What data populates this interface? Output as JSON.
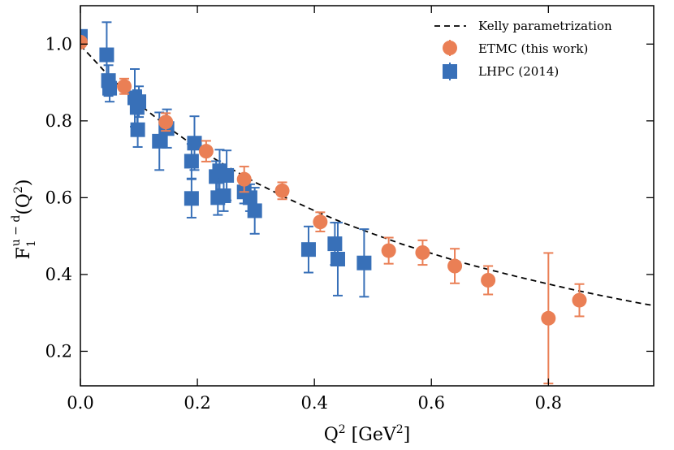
{
  "chart_data": {
    "type": "scatter",
    "xlabel_base": "Q",
    "xlabel_sup": "2",
    "xlabel_unit_open": " [GeV",
    "xlabel_unit_sup": "2",
    "xlabel_unit_close": "]",
    "ylabel_base": "F",
    "ylabel_sub": "1",
    "ylabel_sup": "u − d",
    "ylabel_arg_open": "(Q",
    "ylabel_arg_sup": "2",
    "ylabel_arg_close": ")",
    "xlim": [
      0.0,
      0.98
    ],
    "ylim": [
      0.11,
      1.1
    ],
    "xticks": [
      0.0,
      0.2,
      0.4,
      0.6,
      0.8
    ],
    "xtick_labels": [
      "0.0",
      "0.2",
      "0.4",
      "0.6",
      "0.8"
    ],
    "yticks": [
      0.2,
      0.4,
      0.6,
      0.8,
      1.0
    ],
    "ytick_labels": [
      "0.2",
      "0.4",
      "0.6",
      "0.8",
      "1.0"
    ],
    "grid": false,
    "legend_position": "top-right",
    "colors": {
      "etmc": "#EA7F55",
      "lhpc": "#3870B8",
      "kelly": "#000000"
    },
    "series": [
      {
        "name": "Kelly parametrization",
        "kind": "curve",
        "style": "dashed",
        "x": [
          0.0,
          0.05,
          0.1,
          0.15,
          0.2,
          0.25,
          0.3,
          0.35,
          0.4,
          0.45,
          0.5,
          0.55,
          0.6,
          0.65,
          0.7,
          0.75,
          0.8,
          0.85,
          0.9,
          0.95,
          0.98
        ],
        "y": [
          0.997,
          0.915,
          0.844,
          0.783,
          0.729,
          0.682,
          0.639,
          0.601,
          0.566,
          0.534,
          0.506,
          0.479,
          0.455,
          0.432,
          0.412,
          0.393,
          0.375,
          0.358,
          0.342,
          0.327,
          0.319
        ]
      },
      {
        "name": "ETMC (this work)",
        "kind": "points",
        "marker": "circle",
        "points": [
          {
            "x": 0.0,
            "y": 1.005,
            "err": 0.01
          },
          {
            "x": 0.075,
            "y": 0.89,
            "err": 0.02
          },
          {
            "x": 0.146,
            "y": 0.797,
            "err": 0.023
          },
          {
            "x": 0.215,
            "y": 0.721,
            "err": 0.027
          },
          {
            "x": 0.28,
            "y": 0.648,
            "err": 0.033
          },
          {
            "x": 0.345,
            "y": 0.618,
            "err": 0.022
          },
          {
            "x": 0.41,
            "y": 0.537,
            "err": 0.025
          },
          {
            "x": 0.527,
            "y": 0.462,
            "err": 0.034
          },
          {
            "x": 0.585,
            "y": 0.457,
            "err": 0.032
          },
          {
            "x": 0.64,
            "y": 0.422,
            "err": 0.045
          },
          {
            "x": 0.697,
            "y": 0.385,
            "err": 0.037
          },
          {
            "x": 0.8,
            "y": 0.286,
            "err": 0.17
          },
          {
            "x": 0.853,
            "y": 0.333,
            "err": 0.042
          }
        ]
      },
      {
        "name": "LHPC (2014)",
        "kind": "points",
        "marker": "square",
        "points": [
          {
            "x": 0.0,
            "y": 1.02,
            "err": 0.01
          },
          {
            "x": 0.045,
            "y": 0.972,
            "err": 0.085
          },
          {
            "x": 0.048,
            "y": 0.905,
            "err": 0.04
          },
          {
            "x": 0.05,
            "y": 0.885,
            "err": 0.035
          },
          {
            "x": 0.093,
            "y": 0.86,
            "err": 0.075
          },
          {
            "x": 0.097,
            "y": 0.835,
            "err": 0.045
          },
          {
            "x": 0.1,
            "y": 0.85,
            "err": 0.04
          },
          {
            "x": 0.098,
            "y": 0.777,
            "err": 0.045
          },
          {
            "x": 0.135,
            "y": 0.747,
            "err": 0.075
          },
          {
            "x": 0.148,
            "y": 0.78,
            "err": 0.05
          },
          {
            "x": 0.19,
            "y": 0.695,
            "err": 0.045
          },
          {
            "x": 0.195,
            "y": 0.742,
            "err": 0.07
          },
          {
            "x": 0.19,
            "y": 0.598,
            "err": 0.05
          },
          {
            "x": 0.232,
            "y": 0.655,
            "err": 0.04
          },
          {
            "x": 0.238,
            "y": 0.67,
            "err": 0.055
          },
          {
            "x": 0.25,
            "y": 0.658,
            "err": 0.065
          },
          {
            "x": 0.235,
            "y": 0.6,
            "err": 0.045
          },
          {
            "x": 0.245,
            "y": 0.605,
            "err": 0.04
          },
          {
            "x": 0.28,
            "y": 0.615,
            "err": 0.03
          },
          {
            "x": 0.29,
            "y": 0.6,
            "err": 0.035
          },
          {
            "x": 0.298,
            "y": 0.566,
            "err": 0.06
          },
          {
            "x": 0.39,
            "y": 0.465,
            "err": 0.06
          },
          {
            "x": 0.435,
            "y": 0.48,
            "err": 0.055
          },
          {
            "x": 0.44,
            "y": 0.44,
            "err": 0.095
          },
          {
            "x": 0.485,
            "y": 0.43,
            "err": 0.088
          }
        ]
      }
    ]
  }
}
